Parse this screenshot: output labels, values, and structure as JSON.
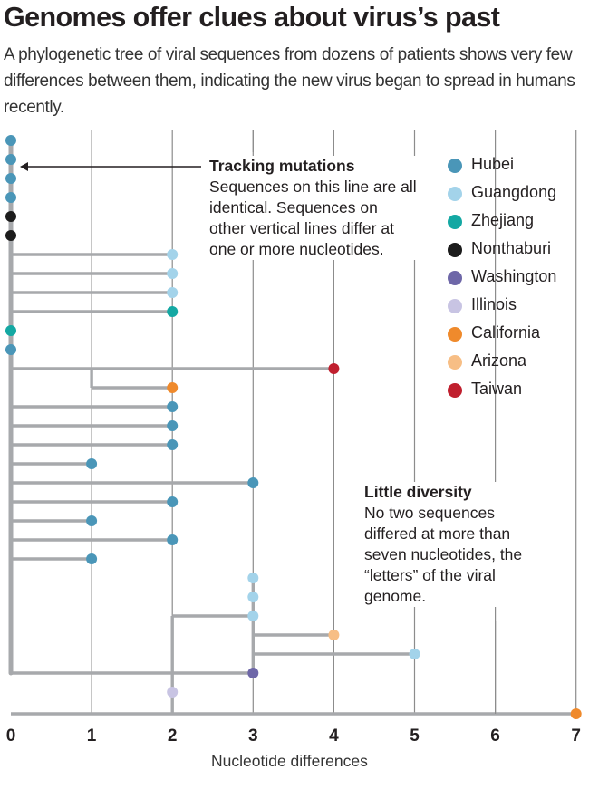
{
  "title": "Genomes offer clues about virus’s past",
  "subtitle": "A phylogenetic tree of viral sequences from dozens of patients shows very few differences between them, indicating the new virus began to spread in humans recently.",
  "annotations": {
    "tracking": {
      "heading": "Tracking mutations",
      "body": "Sequences on this line are all identical. Sequences on other vertical lines differ at one or more nucleotides."
    },
    "diversity": {
      "heading": "Little diversity",
      "body": "No two sequences differed at more than seven nucleotides, the “letters” of the viral genome."
    }
  },
  "colors": {
    "Hubei": "#4a96b8",
    "Guangdong": "#a3d3ea",
    "Zhejiang": "#14a8a3",
    "Nonthaburi": "#1c1c1c",
    "Washington": "#6e67a8",
    "Illinois": "#c8c4e3",
    "California": "#ef8a2c",
    "Arizona": "#f7be85",
    "Taiwan": "#c01f2e",
    "branch": "#a7a9ac",
    "grid": "#8c8c8c"
  },
  "chart_data": {
    "type": "scatter",
    "title": "Genomes offer clues about virus’s past",
    "xlabel": "Nucleotide differences",
    "ylabel": "",
    "xlim": [
      0,
      7
    ],
    "x_ticks": [
      "0",
      "1",
      "2",
      "3",
      "4",
      "5",
      "6",
      "7"
    ],
    "legend": [
      "Hubei",
      "Guangdong",
      "Zhejiang",
      "Nonthaburi",
      "Washington",
      "Illinois",
      "California",
      "Arizona",
      "Taiwan"
    ],
    "legend_position": "right",
    "sequences": [
      {
        "x": 0,
        "region": "Hubei"
      },
      {
        "x": 0,
        "region": "Hubei"
      },
      {
        "x": 0,
        "region": "Hubei"
      },
      {
        "x": 0,
        "region": "Hubei"
      },
      {
        "x": 0,
        "region": "Nonthaburi"
      },
      {
        "x": 0,
        "region": "Nonthaburi"
      },
      {
        "x": 2,
        "region": "Guangdong"
      },
      {
        "x": 2,
        "region": "Guangdong"
      },
      {
        "x": 2,
        "region": "Guangdong"
      },
      {
        "x": 2,
        "region": "Zhejiang"
      },
      {
        "x": 0,
        "region": "Zhejiang"
      },
      {
        "x": 0,
        "region": "Hubei"
      },
      {
        "x": 4,
        "region": "Taiwan"
      },
      {
        "x": 2,
        "region": "California"
      },
      {
        "x": 2,
        "region": "Hubei"
      },
      {
        "x": 2,
        "region": "Hubei"
      },
      {
        "x": 2,
        "region": "Hubei"
      },
      {
        "x": 1,
        "region": "Hubei"
      },
      {
        "x": 3,
        "region": "Hubei"
      },
      {
        "x": 2,
        "region": "Hubei"
      },
      {
        "x": 1,
        "region": "Hubei"
      },
      {
        "x": 2,
        "region": "Hubei"
      },
      {
        "x": 1,
        "region": "Hubei"
      },
      {
        "x": 3,
        "region": "Guangdong"
      },
      {
        "x": 3,
        "region": "Guangdong"
      },
      {
        "x": 3,
        "region": "Guangdong"
      },
      {
        "x": 4,
        "region": "Arizona"
      },
      {
        "x": 5,
        "region": "Guangdong"
      },
      {
        "x": 3,
        "region": "Washington"
      },
      {
        "x": 2,
        "region": "Illinois"
      },
      {
        "x": 7,
        "region": "California"
      }
    ]
  }
}
